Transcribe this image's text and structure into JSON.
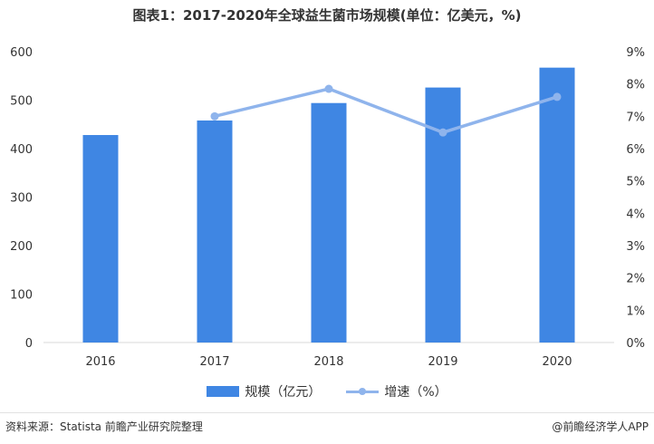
{
  "chart_data": {
    "type": "bar",
    "title": "图表1：2017-2020年全球益生菌市场规模(单位：亿美元，%)",
    "categories": [
      "2016",
      "2017",
      "2018",
      "2019",
      "2020"
    ],
    "series": [
      {
        "name": "规模（亿元）",
        "type": "bar",
        "axis": "left",
        "values": [
          428,
          458,
          494,
          526,
          567
        ],
        "color": "#3f86e3"
      },
      {
        "name": "增速（%）",
        "type": "line",
        "axis": "right",
        "values": [
          null,
          7.0,
          7.85,
          6.5,
          7.6
        ],
        "color": "#8fb4ec"
      }
    ],
    "ylim": [
      0,
      600
    ],
    "yticks": [
      "0",
      "100",
      "200",
      "300",
      "400",
      "500",
      "600"
    ],
    "y2lim": [
      0,
      9
    ],
    "y2ticks": [
      "0%",
      "1%",
      "2%",
      "3%",
      "4%",
      "5%",
      "6%",
      "7%",
      "8%",
      "9%"
    ],
    "grid": false,
    "legend": "bottom"
  },
  "legend": {
    "bar_label": "规模（亿元）",
    "line_label": "增速（%）"
  },
  "footer": {
    "source": "资料来源：Statista 前瞻产业研究院整理",
    "brand": "@前瞻经济学人APP"
  }
}
